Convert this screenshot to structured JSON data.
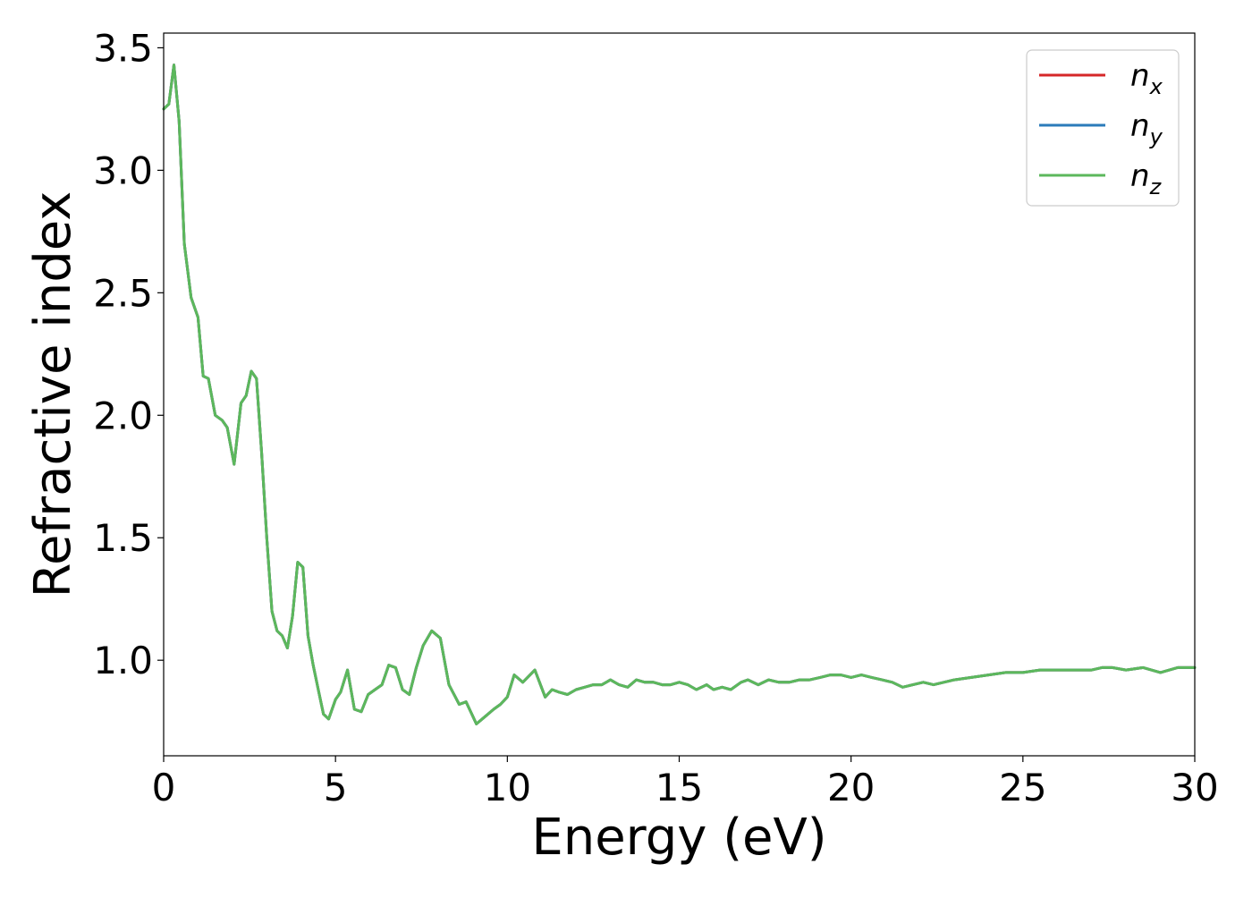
{
  "chart_data": {
    "type": "line",
    "title": "",
    "xlabel": "Energy (eV)",
    "ylabel": "Refractive index",
    "xlim": [
      0,
      30
    ],
    "ylim": [
      0.61,
      3.56
    ],
    "xticks": [
      0,
      5,
      10,
      15,
      20,
      25,
      30
    ],
    "xtick_labels": [
      "0",
      "5",
      "10",
      "15",
      "20",
      "25",
      "30"
    ],
    "yticks": [
      1.0,
      1.5,
      2.0,
      2.5,
      3.0,
      3.5
    ],
    "ytick_labels": [
      "1.0",
      "1.5",
      "2.0",
      "2.5",
      "3.0",
      "3.5"
    ],
    "grid": false,
    "legend_position": "top-right",
    "series": [
      {
        "name": "n",
        "subscript": "x",
        "color": "#d62728",
        "x": [
          0,
          0.15,
          0.3,
          0.45,
          0.6,
          0.8,
          1.0,
          1.15,
          1.3,
          1.5,
          1.7,
          1.85,
          2.05,
          2.25,
          2.4,
          2.55,
          2.7,
          2.85,
          3.0,
          3.15,
          3.3,
          3.45,
          3.6,
          3.75,
          3.9,
          4.05,
          4.2,
          4.35,
          4.5,
          4.65,
          4.8,
          5.0,
          5.15,
          5.35,
          5.55,
          5.75,
          5.95,
          6.15,
          6.35,
          6.55,
          6.75,
          6.95,
          7.15,
          7.35,
          7.55,
          7.8,
          8.05,
          8.3,
          8.6,
          8.8,
          9.1,
          9.35,
          9.6,
          9.8,
          10.0,
          10.2,
          10.45,
          10.8,
          11.1,
          11.3,
          11.5,
          11.75,
          12.0,
          12.25,
          12.5,
          12.75,
          13.0,
          13.25,
          13.5,
          13.75,
          14.0,
          14.25,
          14.5,
          14.75,
          15.0,
          15.25,
          15.5,
          15.8,
          16.0,
          16.25,
          16.5,
          16.8,
          17.0,
          17.3,
          17.6,
          17.9,
          18.2,
          18.5,
          18.8,
          19.1,
          19.4,
          19.7,
          20.0,
          20.3,
          20.6,
          20.9,
          21.2,
          21.5,
          21.8,
          22.1,
          22.4,
          22.7,
          23.0,
          23.5,
          24.0,
          24.5,
          25.0,
          25.5,
          26.0,
          26.5,
          27.0,
          27.3,
          27.6,
          28.0,
          28.5,
          29.0,
          29.5,
          30.0
        ],
        "y": [
          3.25,
          3.27,
          3.43,
          3.2,
          2.7,
          2.48,
          2.4,
          2.16,
          2.15,
          2.0,
          1.98,
          1.95,
          1.8,
          2.05,
          2.08,
          2.18,
          2.15,
          1.85,
          1.5,
          1.2,
          1.12,
          1.1,
          1.05,
          1.18,
          1.4,
          1.38,
          1.1,
          0.98,
          0.88,
          0.78,
          0.76,
          0.84,
          0.87,
          0.96,
          0.8,
          0.79,
          0.86,
          0.88,
          0.9,
          0.98,
          0.97,
          0.88,
          0.86,
          0.97,
          1.06,
          1.12,
          1.09,
          0.9,
          0.82,
          0.83,
          0.74,
          0.77,
          0.8,
          0.82,
          0.85,
          0.94,
          0.91,
          0.96,
          0.85,
          0.88,
          0.87,
          0.86,
          0.88,
          0.89,
          0.9,
          0.9,
          0.92,
          0.9,
          0.89,
          0.92,
          0.91,
          0.91,
          0.9,
          0.9,
          0.91,
          0.9,
          0.88,
          0.9,
          0.88,
          0.89,
          0.88,
          0.91,
          0.92,
          0.9,
          0.92,
          0.91,
          0.91,
          0.92,
          0.92,
          0.93,
          0.94,
          0.94,
          0.93,
          0.94,
          0.93,
          0.92,
          0.91,
          0.89,
          0.9,
          0.91,
          0.9,
          0.91,
          0.92,
          0.93,
          0.94,
          0.95,
          0.95,
          0.96,
          0.96,
          0.96,
          0.96,
          0.97,
          0.97,
          0.96,
          0.97,
          0.95,
          0.97,
          0.97
        ]
      },
      {
        "name": "n",
        "subscript": "y",
        "color": "#2b7bba",
        "x": [
          0,
          0.15,
          0.3,
          0.45,
          0.6,
          0.8,
          1.0,
          1.15,
          1.3,
          1.5,
          1.7,
          1.85,
          2.05,
          2.25,
          2.4,
          2.55,
          2.7,
          2.85,
          3.0,
          3.15,
          3.3,
          3.45,
          3.6,
          3.75,
          3.9,
          4.05,
          4.2,
          4.35,
          4.5,
          4.65,
          4.8,
          5.0,
          5.15,
          5.35,
          5.55,
          5.75,
          5.95,
          6.15,
          6.35,
          6.55,
          6.75,
          6.95,
          7.15,
          7.35,
          7.55,
          7.8,
          8.05,
          8.3,
          8.6,
          8.8,
          9.1,
          9.35,
          9.6,
          9.8,
          10.0,
          10.2,
          10.45,
          10.8,
          11.1,
          11.3,
          11.5,
          11.75,
          12.0,
          12.25,
          12.5,
          12.75,
          13.0,
          13.25,
          13.5,
          13.75,
          14.0,
          14.25,
          14.5,
          14.75,
          15.0,
          15.25,
          15.5,
          15.8,
          16.0,
          16.25,
          16.5,
          16.8,
          17.0,
          17.3,
          17.6,
          17.9,
          18.2,
          18.5,
          18.8,
          19.1,
          19.4,
          19.7,
          20.0,
          20.3,
          20.6,
          20.9,
          21.2,
          21.5,
          21.8,
          22.1,
          22.4,
          22.7,
          23.0,
          23.5,
          24.0,
          24.5,
          25.0,
          25.5,
          26.0,
          26.5,
          27.0,
          27.3,
          27.6,
          28.0,
          28.5,
          29.0,
          29.5,
          30.0
        ],
        "y": [
          3.25,
          3.27,
          3.43,
          3.2,
          2.7,
          2.48,
          2.4,
          2.16,
          2.15,
          2.0,
          1.98,
          1.95,
          1.8,
          2.05,
          2.08,
          2.18,
          2.15,
          1.85,
          1.5,
          1.2,
          1.12,
          1.1,
          1.05,
          1.18,
          1.4,
          1.38,
          1.1,
          0.98,
          0.88,
          0.78,
          0.76,
          0.84,
          0.87,
          0.96,
          0.8,
          0.79,
          0.86,
          0.88,
          0.9,
          0.98,
          0.97,
          0.88,
          0.86,
          0.97,
          1.06,
          1.12,
          1.09,
          0.9,
          0.82,
          0.83,
          0.74,
          0.77,
          0.8,
          0.82,
          0.85,
          0.94,
          0.91,
          0.96,
          0.85,
          0.88,
          0.87,
          0.86,
          0.88,
          0.89,
          0.9,
          0.9,
          0.92,
          0.9,
          0.89,
          0.92,
          0.91,
          0.91,
          0.9,
          0.9,
          0.91,
          0.9,
          0.88,
          0.9,
          0.88,
          0.89,
          0.88,
          0.91,
          0.92,
          0.9,
          0.92,
          0.91,
          0.91,
          0.92,
          0.92,
          0.93,
          0.94,
          0.94,
          0.93,
          0.94,
          0.93,
          0.92,
          0.91,
          0.89,
          0.9,
          0.91,
          0.9,
          0.91,
          0.92,
          0.93,
          0.94,
          0.95,
          0.95,
          0.96,
          0.96,
          0.96,
          0.96,
          0.97,
          0.97,
          0.96,
          0.97,
          0.95,
          0.97,
          0.97
        ]
      },
      {
        "name": "n",
        "subscript": "z",
        "color": "#5cb85c",
        "x": [
          0,
          0.15,
          0.3,
          0.45,
          0.6,
          0.8,
          1.0,
          1.15,
          1.3,
          1.5,
          1.7,
          1.85,
          2.05,
          2.25,
          2.4,
          2.55,
          2.7,
          2.85,
          3.0,
          3.15,
          3.3,
          3.45,
          3.6,
          3.75,
          3.9,
          4.05,
          4.2,
          4.35,
          4.5,
          4.65,
          4.8,
          5.0,
          5.15,
          5.35,
          5.55,
          5.75,
          5.95,
          6.15,
          6.35,
          6.55,
          6.75,
          6.95,
          7.15,
          7.35,
          7.55,
          7.8,
          8.05,
          8.3,
          8.6,
          8.8,
          9.1,
          9.35,
          9.6,
          9.8,
          10.0,
          10.2,
          10.45,
          10.8,
          11.1,
          11.3,
          11.5,
          11.75,
          12.0,
          12.25,
          12.5,
          12.75,
          13.0,
          13.25,
          13.5,
          13.75,
          14.0,
          14.25,
          14.5,
          14.75,
          15.0,
          15.25,
          15.5,
          15.8,
          16.0,
          16.25,
          16.5,
          16.8,
          17.0,
          17.3,
          17.6,
          17.9,
          18.2,
          18.5,
          18.8,
          19.1,
          19.4,
          19.7,
          20.0,
          20.3,
          20.6,
          20.9,
          21.2,
          21.5,
          21.8,
          22.1,
          22.4,
          22.7,
          23.0,
          23.5,
          24.0,
          24.5,
          25.0,
          25.5,
          26.0,
          26.5,
          27.0,
          27.3,
          27.6,
          28.0,
          28.5,
          29.0,
          29.5,
          30.0
        ],
        "y": [
          3.25,
          3.27,
          3.43,
          3.2,
          2.7,
          2.48,
          2.4,
          2.16,
          2.15,
          2.0,
          1.98,
          1.95,
          1.8,
          2.05,
          2.08,
          2.18,
          2.15,
          1.85,
          1.5,
          1.2,
          1.12,
          1.1,
          1.05,
          1.18,
          1.4,
          1.38,
          1.1,
          0.98,
          0.88,
          0.78,
          0.76,
          0.84,
          0.87,
          0.96,
          0.8,
          0.79,
          0.86,
          0.88,
          0.9,
          0.98,
          0.97,
          0.88,
          0.86,
          0.97,
          1.06,
          1.12,
          1.09,
          0.9,
          0.82,
          0.83,
          0.74,
          0.77,
          0.8,
          0.82,
          0.85,
          0.94,
          0.91,
          0.96,
          0.85,
          0.88,
          0.87,
          0.86,
          0.88,
          0.89,
          0.9,
          0.9,
          0.92,
          0.9,
          0.89,
          0.92,
          0.91,
          0.91,
          0.9,
          0.9,
          0.91,
          0.9,
          0.88,
          0.9,
          0.88,
          0.89,
          0.88,
          0.91,
          0.92,
          0.9,
          0.92,
          0.91,
          0.91,
          0.92,
          0.92,
          0.93,
          0.94,
          0.94,
          0.93,
          0.94,
          0.93,
          0.92,
          0.91,
          0.89,
          0.9,
          0.91,
          0.9,
          0.91,
          0.92,
          0.93,
          0.94,
          0.95,
          0.95,
          0.96,
          0.96,
          0.96,
          0.96,
          0.97,
          0.97,
          0.96,
          0.97,
          0.95,
          0.97,
          0.97
        ]
      }
    ]
  }
}
